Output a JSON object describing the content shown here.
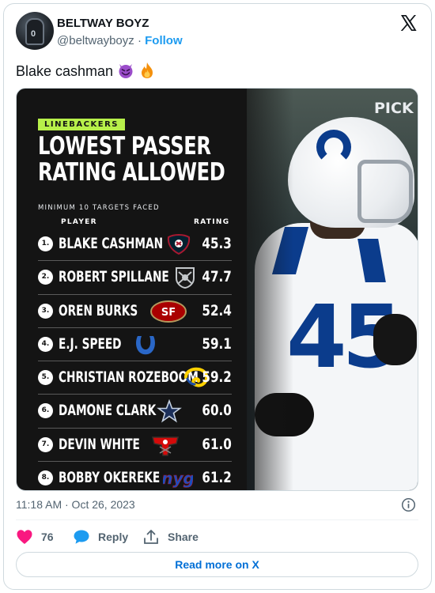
{
  "tweet": {
    "author_name": "BELTWAY BOYZ",
    "author_handle": "@beltwayboyz",
    "separator": "·",
    "follow_label": "Follow",
    "text": "Blake cashman",
    "emojis": [
      "smiling-devil-icon",
      "fire-icon"
    ],
    "timestamp": "11:18 AM · Oct 26, 2023"
  },
  "graphic": {
    "tag": "LINEBACKERS",
    "title_line1": "LOWEST PASSER",
    "title_line2": "RATING ALLOWED",
    "subtitle": "MINIMUM 10 TARGETS FACED",
    "col_player": "PLAYER",
    "col_rating": "RATING",
    "brand": "PICK",
    "jersey_number": "45",
    "players": [
      {
        "rank": "1.",
        "name": "BLAKE CASHMAN",
        "team_icon": "texans-logo-icon",
        "rating": "45.3"
      },
      {
        "rank": "2.",
        "name": "ROBERT SPILLANE",
        "team_icon": "raiders-logo-icon",
        "rating": "47.7"
      },
      {
        "rank": "3.",
        "name": "OREN BURKS",
        "team_icon": "49ers-logo-icon",
        "rating": "52.4"
      },
      {
        "rank": "4.",
        "name": "E.J. SPEED",
        "team_icon": "colts-logo-icon",
        "rating": "59.1"
      },
      {
        "rank": "5.",
        "name": "CHRISTIAN ROZEBOOM",
        "team_icon": "rams-logo-icon",
        "rating": "59.2"
      },
      {
        "rank": "6.",
        "name": "DAMONE CLARK",
        "team_icon": "cowboys-logo-icon",
        "rating": "60.0"
      },
      {
        "rank": "7.",
        "name": "DEVIN WHITE",
        "team_icon": "buccaneers-logo-icon",
        "rating": "61.0"
      },
      {
        "rank": "8.",
        "name": "BOBBY OKEREKE",
        "team_icon": "giants-logo-icon",
        "rating": "61.2"
      }
    ]
  },
  "actions": {
    "likes": "76",
    "reply_label": "Reply",
    "share_label": "Share",
    "read_more_label": "Read more on X"
  },
  "colors": {
    "accent_green": "#b7f04a",
    "link_blue": "#1d9bf0",
    "like_pink": "#f91880"
  }
}
